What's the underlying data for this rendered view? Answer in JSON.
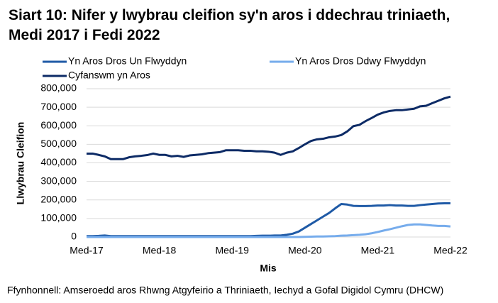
{
  "chart_data": {
    "type": "line",
    "title": "Siart 10: Nifer y lwybrau cleifion sy'n aros i ddechrau triniaeth, Medi 2017 i Fedi 2022",
    "x_label": "Mis",
    "y_label": "Llwybrau Cleifion",
    "source": "Ffynhonnell: Amseroedd aros Rhwng Atgyfeirio a Thriniaeth, Iechyd a Gofal Digidol Cymru (DHCW)",
    "categories": [
      "Med-17",
      null,
      null,
      null,
      null,
      null,
      null,
      null,
      null,
      null,
      null,
      null,
      "Med-18",
      null,
      null,
      null,
      null,
      null,
      null,
      null,
      null,
      null,
      null,
      null,
      "Med-19",
      null,
      null,
      null,
      null,
      null,
      null,
      null,
      null,
      null,
      null,
      null,
      "Med-20",
      null,
      null,
      null,
      null,
      null,
      null,
      null,
      null,
      null,
      null,
      null,
      "Med-21",
      null,
      null,
      null,
      null,
      null,
      null,
      null,
      null,
      null,
      null,
      null,
      "Med-22"
    ],
    "ylim": [
      0,
      800000
    ],
    "yticks": [
      0,
      {
        "value": 100000,
        "label": "100,000"
      },
      {
        "value": 200000,
        "label": "200,000"
      },
      {
        "value": 300000,
        "label": "300,000"
      },
      {
        "value": 400000,
        "label": "400,000"
      },
      {
        "value": 500000,
        "label": "500,000"
      },
      {
        "value": 600000,
        "label": "600,000"
      },
      {
        "value": 700000,
        "label": "700,000"
      },
      {
        "value": 800000,
        "label": "800,000"
      }
    ],
    "grid": true,
    "series": [
      {
        "name": "Yn Aros Dros Un Flwyddyn",
        "color": "#1f5aa6",
        "values": [
          5000,
          5000,
          6000,
          8000,
          5000,
          5000,
          5000,
          5000,
          5000,
          5000,
          5000,
          5000,
          5000,
          5000,
          5000,
          5000,
          5000,
          5000,
          5000,
          5000,
          5000,
          5000,
          5000,
          5000,
          5000,
          5000,
          5000,
          5000,
          6000,
          7000,
          7000,
          8000,
          8000,
          12000,
          18000,
          30000,
          50000,
          70000,
          90000,
          110000,
          130000,
          155000,
          178000,
          175000,
          168000,
          167000,
          167000,
          168000,
          170000,
          170000,
          172000,
          170000,
          170000,
          168000,
          168000,
          172000,
          175000,
          178000,
          181000,
          182000,
          182000
        ]
      },
      {
        "name": "Yn Aros Dros Ddwy Flwyddyn",
        "color": "#76acec",
        "values": [
          0,
          0,
          0,
          0,
          0,
          0,
          0,
          0,
          0,
          0,
          0,
          0,
          0,
          0,
          0,
          0,
          0,
          0,
          0,
          0,
          0,
          0,
          0,
          0,
          0,
          0,
          0,
          0,
          0,
          0,
          0,
          0,
          0,
          0,
          0,
          0,
          1000,
          2000,
          3000,
          3000,
          4000,
          5000,
          7000,
          8000,
          10000,
          12000,
          15000,
          20000,
          27000,
          35000,
          42000,
          50000,
          58000,
          65000,
          68000,
          68000,
          65000,
          62000,
          60000,
          60000,
          57000
        ]
      },
      {
        "name": "Cyfanswm yn Aros",
        "color": "#0d2b66",
        "values": [
          450000,
          450000,
          443000,
          435000,
          420000,
          420000,
          420000,
          430000,
          435000,
          438000,
          442000,
          450000,
          443000,
          443000,
          435000,
          438000,
          432000,
          440000,
          443000,
          446000,
          452000,
          455000,
          458000,
          468000,
          468000,
          468000,
          465000,
          465000,
          462000,
          462000,
          460000,
          455000,
          443000,
          455000,
          462000,
          480000,
          500000,
          518000,
          527000,
          530000,
          538000,
          542000,
          550000,
          570000,
          598000,
          605000,
          625000,
          642000,
          660000,
          672000,
          680000,
          684000,
          684000,
          688000,
          692000,
          705000,
          708000,
          722000,
          735000,
          748000,
          757000
        ]
      }
    ]
  }
}
